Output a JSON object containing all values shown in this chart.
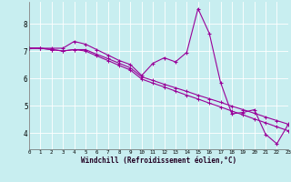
{
  "xlabel": "Windchill (Refroidissement éolien,°C)",
  "background_color": "#c8eef0",
  "line_color": "#990099",
  "xmin": 0,
  "xmax": 23,
  "ymin": 3.4,
  "ymax": 8.8,
  "x_values": [
    0,
    1,
    2,
    3,
    4,
    5,
    6,
    7,
    8,
    9,
    10,
    11,
    12,
    13,
    14,
    15,
    16,
    17,
    18,
    19,
    20,
    21,
    22,
    23
  ],
  "line1": [
    7.1,
    7.1,
    7.1,
    7.1,
    7.35,
    7.25,
    7.05,
    6.85,
    6.65,
    6.5,
    6.1,
    6.55,
    6.75,
    6.6,
    6.95,
    8.55,
    7.65,
    5.85,
    4.7,
    4.75,
    4.85,
    3.95,
    3.6,
    4.3
  ],
  "line2": [
    7.1,
    7.1,
    7.05,
    7.0,
    7.05,
    7.05,
    6.88,
    6.72,
    6.55,
    6.38,
    6.05,
    5.92,
    5.78,
    5.65,
    5.52,
    5.38,
    5.25,
    5.12,
    4.98,
    4.85,
    4.72,
    4.58,
    4.45,
    4.32
  ],
  "line3": [
    7.1,
    7.1,
    7.05,
    7.0,
    7.05,
    7.0,
    6.82,
    6.65,
    6.47,
    6.3,
    5.97,
    5.82,
    5.68,
    5.53,
    5.38,
    5.24,
    5.09,
    4.95,
    4.8,
    4.66,
    4.51,
    4.37,
    4.22,
    4.08
  ],
  "yticks": [
    4,
    5,
    6,
    7,
    8
  ],
  "xticks": [
    0,
    1,
    2,
    3,
    4,
    5,
    6,
    7,
    8,
    9,
    10,
    11,
    12,
    13,
    14,
    15,
    16,
    17,
    18,
    19,
    20,
    21,
    22,
    23
  ]
}
